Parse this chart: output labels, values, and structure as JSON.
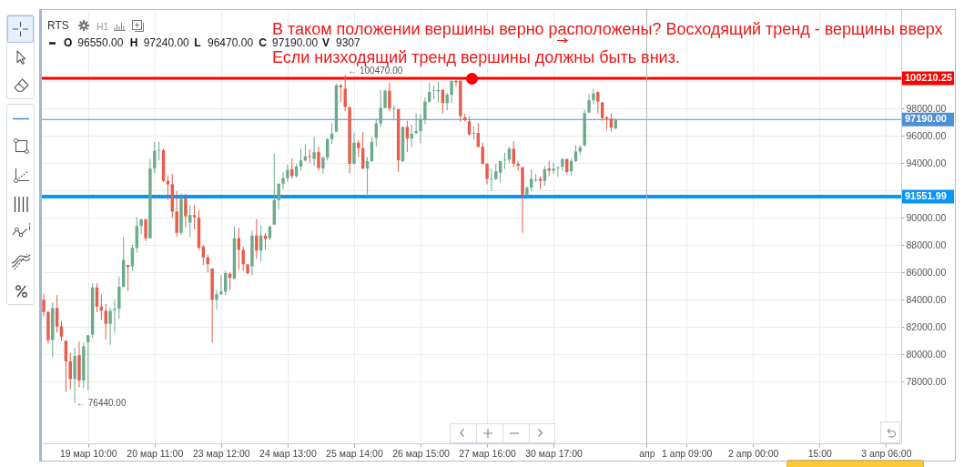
{
  "chart_data": {
    "type": "candlestick",
    "title": "RTS",
    "categories": [
      null,
      null,
      null,
      null,
      null,
      null,
      null,
      null,
      null,
      null,
      "19 мар 10:00",
      null,
      null,
      null,
      null,
      null,
      null,
      null,
      null,
      null,
      null,
      null,
      null,
      null,
      null,
      "20 мар 11:00",
      null,
      null,
      null,
      null,
      null,
      null,
      null,
      null,
      null,
      null,
      null,
      null,
      null,
      null,
      "23 мар 12:00",
      null,
      null,
      null,
      null,
      null,
      null,
      null,
      null,
      null,
      null,
      null,
      null,
      null,
      null,
      "24 мар 13:00",
      null,
      null,
      null,
      null,
      null,
      null,
      null,
      null,
      null,
      null,
      null,
      null,
      null,
      null,
      "25 мар 14:00",
      null,
      null,
      null,
      null,
      null,
      null,
      null,
      null,
      null,
      null,
      null,
      null,
      null,
      null,
      "26 мар 15:00",
      null,
      null,
      null,
      null,
      null,
      null,
      null,
      null,
      null,
      null,
      null,
      null,
      null,
      null,
      "27 мар 16:00",
      null,
      null,
      null,
      null,
      null,
      null,
      null,
      null,
      null,
      null,
      null,
      null,
      null,
      null,
      "30 мар 17:00",
      null,
      null,
      null,
      null,
      null,
      null,
      null,
      null,
      null,
      null,
      null,
      null,
      null,
      null,
      null,
      null,
      null,
      null,
      null,
      null,
      "апр",
      null,
      null,
      null,
      null,
      null,
      null,
      null,
      null,
      "1 апр 09:00",
      null,
      null,
      null,
      null,
      null,
      null,
      null,
      null,
      null,
      null,
      null,
      null,
      null,
      null,
      "2 апр 00:00",
      null,
      null,
      null,
      null,
      null,
      null,
      null,
      null,
      null,
      null,
      null,
      null,
      null,
      null,
      "15:00",
      null,
      null,
      null,
      null,
      null,
      null,
      null,
      null,
      null,
      null,
      null,
      null,
      null,
      null,
      "3 апр 06:00",
      null,
      null,
      null
    ],
    "ohlc": [
      [
        84000,
        84450,
        82800,
        83100
      ],
      [
        83100,
        83200,
        80800,
        81050
      ],
      [
        81050,
        83800,
        79800,
        83400
      ],
      [
        83400,
        84350,
        81600,
        82050
      ],
      [
        82050,
        82450,
        81000,
        81300
      ],
      [
        81000,
        81050,
        77250,
        79500
      ],
      [
        79500,
        80100,
        77450,
        78200
      ],
      [
        78200,
        80500,
        76440,
        79900
      ],
      [
        79950,
        80950,
        77600,
        78100
      ],
      [
        78100,
        80850,
        77550,
        80600
      ],
      [
        80900,
        81400,
        77350,
        81400
      ],
      [
        81450,
        85200,
        81200,
        84900
      ],
      [
        84900,
        85200,
        83100,
        83500
      ],
      [
        83500,
        84400,
        82500,
        83200
      ],
      [
        83200,
        83700,
        81100,
        82250
      ],
      [
        82250,
        83450,
        80700,
        83200
      ],
      [
        83250,
        84050,
        81600,
        83350
      ],
      [
        83350,
        85700,
        82600,
        84950
      ],
      [
        84950,
        88600,
        84900,
        86900
      ],
      [
        86550,
        86550,
        84650,
        86400
      ],
      [
        86450,
        88050,
        86100,
        87800
      ],
      [
        87800,
        90050,
        87450,
        89400
      ],
      [
        89400,
        89900,
        88800,
        89900
      ],
      [
        89900,
        89900,
        88300,
        88500
      ],
      [
        88500,
        94300,
        88500,
        93600
      ],
      [
        93600,
        95550,
        93250,
        94900
      ],
      [
        94900,
        95550,
        94200,
        94950
      ],
      [
        94950,
        95050,
        92600,
        92700
      ],
      [
        92700,
        93100,
        91300,
        92450
      ],
      [
        92450,
        93200,
        90000,
        90450
      ],
      [
        90450,
        91950,
        88600,
        88900
      ],
      [
        88900,
        91800,
        88750,
        91400
      ],
      [
        91400,
        91750,
        89300,
        90100
      ],
      [
        89650,
        90900,
        88600,
        90200
      ],
      [
        90200,
        90950,
        89150,
        90050
      ],
      [
        90000,
        90550,
        87650,
        87800
      ],
      [
        87900,
        88000,
        86550,
        87100
      ],
      [
        87100,
        87300,
        86000,
        86600
      ],
      [
        86300,
        86300,
        80850,
        84000
      ],
      [
        84000,
        84700,
        83300,
        84400
      ],
      [
        84400,
        85800,
        84400,
        84600
      ],
      [
        84600,
        86150,
        84350,
        85950
      ],
      [
        85900,
        86000,
        84700,
        85600
      ],
      [
        85550,
        89350,
        85500,
        88500
      ],
      [
        88500,
        89250,
        86200,
        87650
      ],
      [
        87650,
        87900,
        86100,
        86600
      ],
      [
        86600,
        86600,
        85850,
        85950
      ],
      [
        86450,
        89050,
        85800,
        88700
      ],
      [
        88700,
        89900,
        87000,
        87600
      ],
      [
        87600,
        89450,
        86800,
        88700
      ],
      [
        88700,
        88900,
        87650,
        88450
      ],
      [
        88500,
        89450,
        88350,
        89350
      ],
      [
        89500,
        94700,
        89500,
        91300
      ],
      [
        91300,
        92500,
        90600,
        92500
      ],
      [
        92500,
        93350,
        92100,
        92900
      ],
      [
        92900,
        93900,
        92650,
        93500
      ],
      [
        93550,
        94350,
        92850,
        93050
      ],
      [
        93050,
        93950,
        92950,
        93750
      ],
      [
        93750,
        95050,
        93450,
        94200
      ],
      [
        94200,
        95400,
        94100,
        94500
      ],
      [
        94500,
        95000,
        94000,
        94450
      ],
      [
        94300,
        95900,
        93800,
        94800
      ],
      [
        94800,
        95200,
        93450,
        93650
      ],
      [
        93600,
        94500,
        93250,
        94400
      ],
      [
        94400,
        95850,
        94200,
        95750
      ],
      [
        95750,
        96900,
        95400,
        96150
      ],
      [
        96300,
        99800,
        96300,
        99700
      ],
      [
        99700,
        99750,
        98450,
        99550
      ],
      [
        99450,
        100470,
        97800,
        98100
      ],
      [
        98100,
        98100,
        93250,
        93950
      ],
      [
        93950,
        96200,
        93900,
        95500
      ],
      [
        95500,
        95700,
        94450,
        95100
      ],
      [
        95100,
        96250,
        93550,
        93600
      ],
      [
        93600,
        94450,
        91600,
        94150
      ],
      [
        94150,
        95900,
        94050,
        95550
      ],
      [
        95850,
        97250,
        95200,
        96900
      ],
      [
        96900,
        99350,
        96650,
        98050
      ],
      [
        98050,
        99350,
        98000,
        99300
      ],
      [
        99300,
        99900,
        97800,
        98000
      ],
      [
        97950,
        98250,
        97250,
        98000
      ],
      [
        97950,
        97950,
        93350,
        94200
      ],
      [
        94150,
        96650,
        94050,
        96650
      ],
      [
        96650,
        97100,
        94800,
        95800
      ],
      [
        95800,
        96800,
        95150,
        96150
      ],
      [
        96200,
        97650,
        96100,
        96350
      ],
      [
        96350,
        97600,
        95450,
        97200
      ],
      [
        97200,
        98800,
        96850,
        98500
      ],
      [
        98500,
        99900,
        98400,
        99200
      ],
      [
        99300,
        99700,
        98650,
        99350
      ],
      [
        99250,
        99950,
        98450,
        99350
      ],
      [
        99350,
        99400,
        97600,
        98400
      ],
      [
        98400,
        99150,
        97850,
        99000
      ],
      [
        99000,
        100150,
        98400,
        100000
      ],
      [
        100000,
        100150,
        99600,
        99900
      ],
      [
        100000,
        100200,
        97000,
        97450
      ],
      [
        97350,
        97600,
        97050,
        97150
      ],
      [
        97050,
        97400,
        96000,
        96100
      ],
      [
        96150,
        96700,
        95700,
        96200
      ],
      [
        96200,
        96900,
        95150,
        95200
      ],
      [
        95200,
        95500,
        93900,
        93950
      ],
      [
        93950,
        94000,
        92450,
        92850
      ],
      [
        92800,
        93600,
        91950,
        92850
      ],
      [
        92850,
        93950,
        92750,
        93400
      ],
      [
        93300,
        94150,
        92600,
        94150
      ],
      [
        94200,
        94750,
        93550,
        94250
      ],
      [
        94250,
        95200,
        94000,
        95050
      ],
      [
        95050,
        95600,
        93700,
        93950
      ],
      [
        93950,
        94150,
        93450,
        93800
      ],
      [
        93700,
        93700,
        88900,
        91700
      ],
      [
        91700,
        92300,
        91600,
        92200
      ],
      [
        92200,
        93550,
        91950,
        92850
      ],
      [
        92750,
        93200,
        92600,
        92800
      ],
      [
        92850,
        93000,
        92100,
        92700
      ],
      [
        92700,
        93800,
        92350,
        93550
      ],
      [
        93600,
        94150,
        93050,
        93450
      ],
      [
        93450,
        94050,
        93200,
        93600
      ],
      [
        93650,
        93750,
        93000,
        93700
      ],
      [
        93750,
        94350,
        93450,
        94300
      ],
      [
        94300,
        94300,
        93200,
        93350
      ],
      [
        93400,
        94350,
        93100,
        94150
      ],
      [
        94150,
        95300,
        94050,
        94850
      ],
      [
        94850,
        95300,
        94650,
        95150
      ],
      [
        95300,
        97900,
        95200,
        97650
      ],
      [
        97700,
        99050,
        97700,
        98600
      ],
      [
        98600,
        99450,
        98300,
        99100
      ],
      [
        99200,
        99250,
        97650,
        98500
      ],
      [
        98450,
        98450,
        97100,
        97300
      ],
      [
        97350,
        97450,
        96450,
        97250
      ],
      [
        97250,
        97650,
        96300,
        96600
      ],
      [
        96550,
        97240,
        96470,
        97190
      ],
      null,
      null,
      null,
      null,
      null,
      null,
      null,
      null,
      null,
      null,
      null,
      null,
      null,
      null,
      null,
      null,
      null,
      null,
      null,
      null,
      null,
      null,
      null,
      null,
      null,
      null,
      null,
      null,
      null,
      null,
      null,
      null,
      null,
      null,
      null,
      null,
      null,
      null,
      null,
      null,
      null,
      null,
      null,
      null,
      null,
      null,
      null,
      null,
      null,
      null,
      null,
      null,
      null,
      null,
      null,
      null,
      null,
      null,
      null,
      null,
      null,
      null,
      null,
      null
    ],
    "colors": [
      "#e95b4a",
      "#e95b4a",
      "#6aab8c",
      "#e95b4a",
      "#e95b4a",
      "#e95b4a",
      "#e95b4a",
      "#6aab8c",
      "#e95b4a",
      "#6aab8c",
      "#6aab8c",
      "#6aab8c",
      "#e95b4a",
      "#e95b4a",
      "#e95b4a",
      "#6aab8c",
      "#6aab8c",
      "#6aab8c",
      "#6aab8c",
      "#e95b4a",
      "#6aab8c",
      "#6aab8c",
      "#6aab8c",
      "#e95b4a",
      "#6aab8c",
      "#6aab8c",
      "#6aab8c",
      "#e95b4a",
      "#e95b4a",
      "#e95b4a",
      "#e95b4a",
      "#6aab8c",
      "#e95b4a",
      "#6aab8c",
      "#e95b4a",
      "#e95b4a",
      "#e95b4a",
      "#e95b4a",
      "#e95b4a",
      "#6aab8c",
      "#6aab8c",
      "#6aab8c",
      "#e95b4a",
      "#6aab8c",
      "#e95b4a",
      "#e95b4a",
      "#e95b4a",
      "#6aab8c",
      "#e95b4a",
      "#6aab8c",
      "#e95b4a",
      "#6aab8c",
      "#6aab8c",
      "#6aab8c",
      "#6aab8c",
      "#6aab8c",
      "#e95b4a",
      "#6aab8c",
      "#6aab8c",
      "#6aab8c",
      "#e95b4a",
      "#6aab8c",
      "#e95b4a",
      "#6aab8c",
      "#6aab8c",
      "#6aab8c",
      "#6aab8c",
      "#e95b4a",
      "#e95b4a",
      "#e95b4a",
      "#6aab8c",
      "#e95b4a",
      "#e95b4a",
      "#6aab8c",
      "#6aab8c",
      "#6aab8c",
      "#6aab8c",
      "#6aab8c",
      "#e95b4a",
      "#6aab8c",
      "#e95b4a",
      "#6aab8c",
      "#e95b4a",
      "#6aab8c",
      "#6aab8c",
      "#6aab8c",
      "#6aab8c",
      "#6aab8c",
      "#6aab8c",
      "#6aab8c",
      "#e95b4a",
      "#6aab8c",
      "#6aab8c",
      "#e95b4a",
      "#e95b4a",
      "#e95b4a",
      "#e95b4a",
      "#6aab8c",
      "#e95b4a",
      "#e95b4a",
      "#e95b4a",
      "#6aab8c",
      "#6aab8c",
      "#6aab8c",
      "#6aab8c",
      "#6aab8c",
      "#e95b4a",
      "#e95b4a",
      "#e95b4a",
      "#6aab8c",
      "#6aab8c",
      "#6aab8c",
      "#e95b4a",
      "#6aab8c",
      "#e95b4a",
      "#6aab8c",
      "#6aab8c",
      "#6aab8c",
      "#e95b4a",
      "#6aab8c",
      "#6aab8c",
      "#6aab8c",
      "#6aab8c",
      "#6aab8c",
      "#6aab8c",
      "#e95b4a",
      "#e95b4a",
      "#e95b4a",
      "#e95b4a",
      "#6aab8c",
      null,
      null,
      null,
      null,
      null,
      null,
      null,
      null,
      null,
      null,
      null,
      null,
      null,
      null,
      null,
      null,
      null,
      null,
      null,
      null,
      null,
      null,
      null,
      null,
      null,
      null,
      null,
      null,
      null,
      null,
      null,
      null,
      null,
      null,
      null,
      null,
      null,
      null,
      null,
      null,
      null,
      null,
      null,
      null,
      null,
      null,
      null,
      null,
      null,
      null,
      null,
      null,
      null,
      null,
      null,
      null,
      null,
      null,
      null,
      null,
      null,
      null,
      null,
      null
    ],
    "ylim": [
      73500,
      105200
    ],
    "yticks": [
      {
        "value": 78000,
        "label": "78000.00"
      },
      {
        "value": 80000,
        "label": "80000.00"
      },
      {
        "value": 82000,
        "label": "82000.00"
      },
      {
        "value": 84000,
        "label": "84000.00"
      },
      {
        "value": 86000,
        "label": "86000.00"
      },
      {
        "value": 88000,
        "label": "88000.00"
      },
      {
        "value": 90000,
        "label": "90000.00"
      },
      {
        "value": 92000,
        "label": null
      },
      {
        "value": 94000,
        "label": "94000.00"
      },
      {
        "value": 96000,
        "label": "96000.00"
      },
      {
        "value": 98000,
        "label": "98000.00"
      },
      {
        "value": 100000,
        "label": null
      }
    ],
    "grid": true,
    "ref_lines": [
      {
        "axis": "y",
        "value": 100210.25,
        "label": "100210.25",
        "color": "#ff0000"
      },
      {
        "axis": "y",
        "value": 97190,
        "label": "97190.00",
        "color": "#4f8fd6"
      },
      {
        "axis": "y",
        "value": 91551.99,
        "label": "91551.99",
        "color": "#0a95f5"
      },
      {
        "axis": "x",
        "value": "апр",
        "color": "#b5b5b5"
      }
    ],
    "annotations": [
      "H1",
      "O",
      "96550.00",
      "H",
      "97240.00",
      "L",
      "96470.00",
      "C",
      "97190.00",
      "V",
      "9307",
      "В таком положении вершины верно расположены? Восходящий тренд - верщины вверх",
      "Если низходящий тренд вершины должны быть вниз.",
      {
        "text": "← 100470.00",
        "y": 100470
      },
      "← 76440.00"
    ]
  }
}
